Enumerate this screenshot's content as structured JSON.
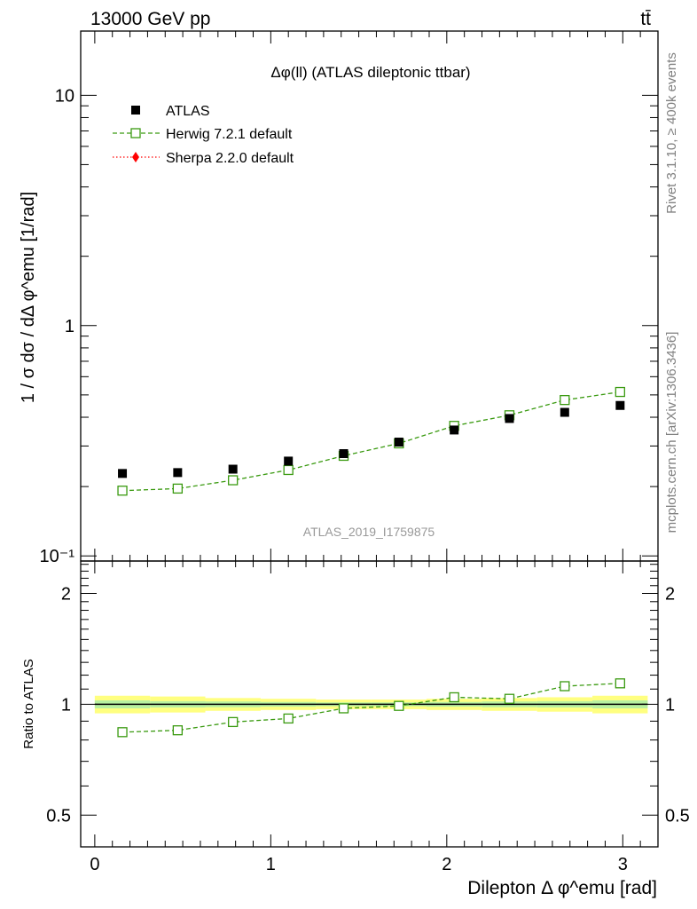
{
  "header": {
    "left": "13000 GeV pp",
    "right": "tt̄"
  },
  "side_text": {
    "top": "Rivet 3.1.10, ≥ 400k events",
    "bottom": "mcplots.cern.ch [arXiv:1306.3436]"
  },
  "colors": {
    "data": "#000000",
    "herwig": "#3a9a10",
    "sherpa": "#ff0000",
    "band_outer": "#ffff80",
    "band_inner": "#b8f0a0"
  },
  "chart_data": [
    {
      "type": "scatter",
      "title": "Δφ(ll) (ATLAS dileptonic ttbar)",
      "ylabel": "1 / σ  dσ / dΔ φ^emu [1/rad]",
      "xlabel": "",
      "watermark": "ATLAS_2019_I1759875",
      "yscale": "log",
      "ylim": [
        0.095,
        19
      ],
      "xlim": [
        -0.08,
        3.2
      ],
      "yticks": [
        {
          "v": 10,
          "label": "10"
        },
        {
          "v": 1,
          "label": "1"
        },
        {
          "v": 0.1,
          "label": "10⁻¹"
        }
      ],
      "x": [
        0.157,
        0.471,
        0.785,
        1.1,
        1.414,
        1.728,
        2.042,
        2.356,
        2.67,
        2.985
      ],
      "legend": {
        "position": "top-left"
      },
      "series": [
        {
          "name": "ATLAS",
          "marker": "square-filled",
          "values": [
            0.228,
            0.23,
            0.238,
            0.258,
            0.278,
            0.312,
            0.352,
            0.395,
            0.42,
            0.45
          ]
        },
        {
          "name": "Herwig 7.2.1 default",
          "marker": "square-open",
          "line": "dashed",
          "values": [
            0.192,
            0.196,
            0.213,
            0.236,
            0.272,
            0.308,
            0.367,
            0.408,
            0.475,
            0.515
          ]
        },
        {
          "name": "Sherpa 2.2.0 default",
          "marker": "diamond-filled",
          "line": "dotted",
          "values": []
        }
      ]
    },
    {
      "type": "line",
      "ylabel": "Ratio to ATLAS",
      "xlabel": "Dilepton Δ φ^emu [rad]",
      "yscale": "log",
      "ylim": [
        0.41,
        2.45
      ],
      "xlim": [
        -0.08,
        3.2
      ],
      "yticks": [
        {
          "v": 2,
          "label": "2"
        },
        {
          "v": 1,
          "label": "1"
        },
        {
          "v": 0.5,
          "label": "0.5"
        }
      ],
      "xticks": [
        {
          "v": 0,
          "label": "0"
        },
        {
          "v": 1,
          "label": "1"
        },
        {
          "v": 2,
          "label": "2"
        },
        {
          "v": 3,
          "label": "3"
        }
      ],
      "x": [
        0.157,
        0.471,
        0.785,
        1.1,
        1.414,
        1.728,
        2.042,
        2.356,
        2.67,
        2.985
      ],
      "band_outer": [
        0.055,
        0.05,
        0.04,
        0.035,
        0.03,
        0.03,
        0.035,
        0.04,
        0.045,
        0.055
      ],
      "band_inner": [
        0.025,
        0.02,
        0.018,
        0.015,
        0.012,
        0.012,
        0.015,
        0.018,
        0.02,
        0.025
      ],
      "series": [
        {
          "name": "Herwig 7.2.1 default",
          "values": [
            0.84,
            0.85,
            0.895,
            0.915,
            0.975,
            0.99,
            1.045,
            1.035,
            1.12,
            1.14
          ]
        }
      ]
    }
  ]
}
